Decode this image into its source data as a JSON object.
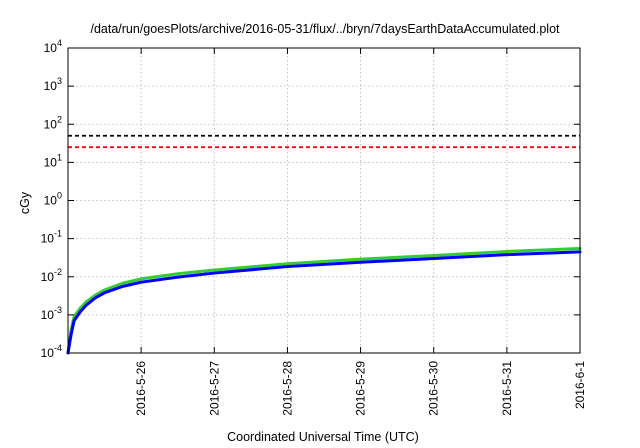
{
  "chart_data": {
    "type": "line",
    "title": "/data/run/goesPlots/archive/2016-05-31/flux/../bryn/7daysEarthDataAccumulated.plot",
    "xlabel": "Coordinated Universal Time (UTC)",
    "ylabel": "cGy",
    "y_scale": "log",
    "ylim": [
      0.0001,
      10000
    ],
    "xlim": [
      "2016-05-25",
      "2016-06-01"
    ],
    "y_ticks": [
      {
        "base": "10",
        "exp": "-4"
      },
      {
        "base": "10",
        "exp": "-3"
      },
      {
        "base": "10",
        "exp": "-2"
      },
      {
        "base": "10",
        "exp": "-1"
      },
      {
        "base": "10",
        "exp": "0"
      },
      {
        "base": "10",
        "exp": "1"
      },
      {
        "base": "10",
        "exp": "2"
      },
      {
        "base": "10",
        "exp": "3"
      },
      {
        "base": "10",
        "exp": "4"
      }
    ],
    "x_ticks": [
      "2016-5-26",
      "2016-5-27",
      "2016-5-28",
      "2016-5-29",
      "2016-5-30",
      "2016-5-31",
      "2016-6-1"
    ],
    "grid": true,
    "reference_lines": [
      {
        "y": 50,
        "color": "#000000",
        "style": "dashed"
      },
      {
        "y": 25,
        "color": "#ff0000",
        "style": "dashed"
      }
    ],
    "series": [
      {
        "color": "#33cc33",
        "x": [
          "2016-05-25T00:00",
          "2016-05-25T01:00",
          "2016-05-25T02:00",
          "2016-05-25T04:00",
          "2016-05-25T06:00",
          "2016-05-25T09:00",
          "2016-05-25T12:00",
          "2016-05-25T18:00",
          "2016-05-26T00:00",
          "2016-05-26T12:00",
          "2016-05-27T00:00",
          "2016-05-28T00:00",
          "2016-05-29T00:00",
          "2016-05-30T00:00",
          "2016-05-31T00:00",
          "2016-06-01T00:00"
        ],
        "y": [
          0.0001,
          0.0004,
          0.0009,
          0.0015,
          0.0022,
          0.0033,
          0.0045,
          0.0068,
          0.0088,
          0.012,
          0.015,
          0.022,
          0.029,
          0.036,
          0.046,
          0.055
        ]
      },
      {
        "color": "#0000ff",
        "x": [
          "2016-05-25T00:00",
          "2016-05-25T01:00",
          "2016-05-25T02:00",
          "2016-05-25T04:00",
          "2016-05-25T06:00",
          "2016-05-25T09:00",
          "2016-05-25T12:00",
          "2016-05-25T18:00",
          "2016-05-26T00:00",
          "2016-05-26T12:00",
          "2016-05-27T00:00",
          "2016-05-28T00:00",
          "2016-05-29T00:00",
          "2016-05-30T00:00",
          "2016-05-31T00:00",
          "2016-06-01T00:00"
        ],
        "y": [
          0.0001,
          0.0003,
          0.0007,
          0.0012,
          0.0018,
          0.0028,
          0.0038,
          0.0056,
          0.0072,
          0.0098,
          0.0125,
          0.0185,
          0.024,
          0.03,
          0.038,
          0.045
        ]
      }
    ]
  }
}
